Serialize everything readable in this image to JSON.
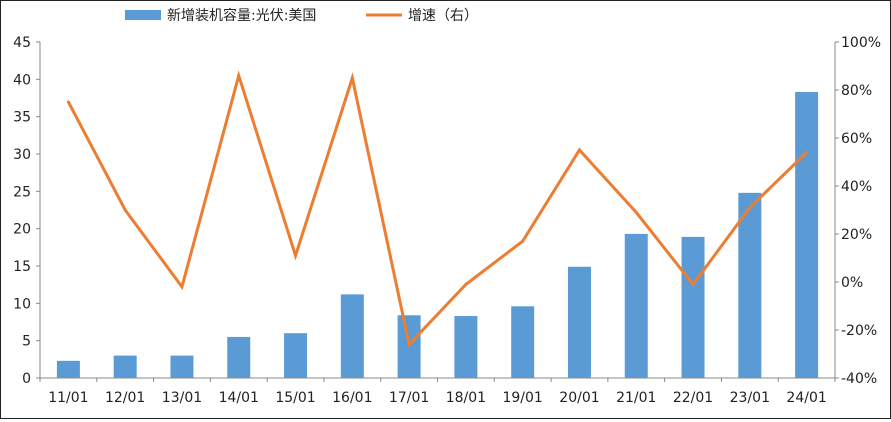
{
  "chart_data": {
    "type": "bar+line",
    "categories": [
      "11/01",
      "12/01",
      "13/01",
      "14/01",
      "15/01",
      "16/01",
      "17/01",
      "18/01",
      "19/01",
      "20/01",
      "21/01",
      "22/01",
      "23/01",
      "24/01"
    ],
    "series": [
      {
        "name": "新增装机容量:光伏:美国",
        "type": "bar",
        "axis": "left",
        "values": [
          2.3,
          3.0,
          3.0,
          5.5,
          6.0,
          11.2,
          8.4,
          8.3,
          9.6,
          14.9,
          19.3,
          18.9,
          24.8,
          38.3
        ]
      },
      {
        "name": "增速（右）",
        "type": "line",
        "axis": "right",
        "values": [
          75,
          30,
          -2,
          86,
          11,
          85,
          -26,
          -1,
          17,
          55,
          29,
          -1,
          31,
          54
        ]
      }
    ],
    "y_left": {
      "min": 0,
      "max": 45,
      "ticks": [
        "0",
        "5",
        "10",
        "15",
        "20",
        "25",
        "30",
        "35",
        "40",
        "45"
      ]
    },
    "y_right": {
      "min": -40,
      "max": 100,
      "ticks": [
        "-40%",
        "-20%",
        "0%",
        "20%",
        "40%",
        "60%",
        "80%",
        "100%"
      ]
    },
    "grid": false,
    "legend_position": "top-center",
    "colors": {
      "bar": "#5b9bd5",
      "line": "#ed7d31",
      "axis": "#888888"
    }
  }
}
